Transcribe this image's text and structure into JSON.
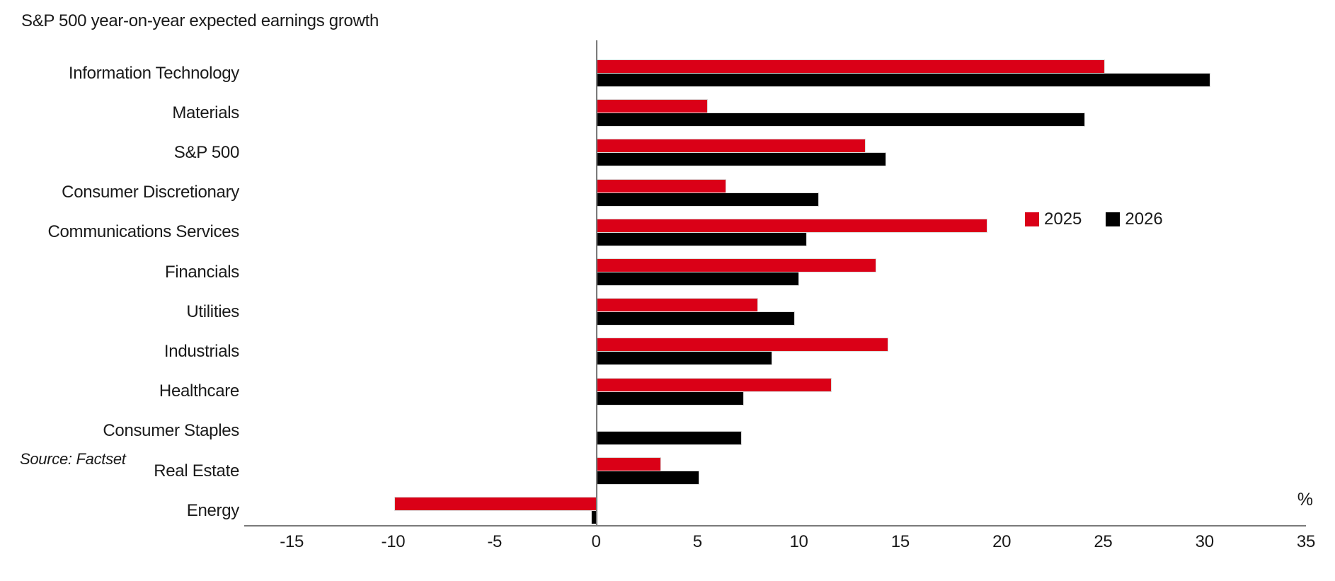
{
  "title": "S&P 500 year-on-year expected earnings growth",
  "source_note": "Source: Factset",
  "colors": {
    "series_2025": "#da0017",
    "series_2026": "#000000",
    "axis": "#7a7a7a",
    "text": "#1a1a1a"
  },
  "legend": [
    {
      "label": "2025",
      "color": "#da0017"
    },
    {
      "label": "2026",
      "color": "#000000"
    }
  ],
  "chart_data": {
    "type": "bar",
    "orientation": "horizontal",
    "title": "S&P 500 year-on-year expected earnings growth",
    "xlabel": "%",
    "ylabel": "",
    "xlim": [
      -15,
      35
    ],
    "xticks": [
      -15,
      -10,
      -5,
      0,
      5,
      10,
      15,
      20,
      25,
      30,
      35
    ],
    "grid": false,
    "legend_position": "right-middle",
    "categories": [
      "Information Technology",
      "Materials",
      "S&P 500",
      "Consumer Discretionary",
      "Communications Services",
      "Financials",
      "Utilities",
      "Industrials",
      "Healthcare",
      "Consumer Staples",
      "Real Estate",
      "Energy"
    ],
    "series": [
      {
        "name": "2025",
        "color": "#da0017",
        "values": [
          25.0,
          5.4,
          13.2,
          6.3,
          19.2,
          13.7,
          7.9,
          14.3,
          11.5,
          0.0,
          3.1,
          -9.9
        ]
      },
      {
        "name": "2026",
        "color": "#000000",
        "values": [
          30.2,
          24.0,
          14.2,
          10.9,
          10.3,
          9.9,
          9.7,
          8.6,
          7.2,
          7.1,
          5.0,
          -0.2
        ]
      }
    ]
  }
}
